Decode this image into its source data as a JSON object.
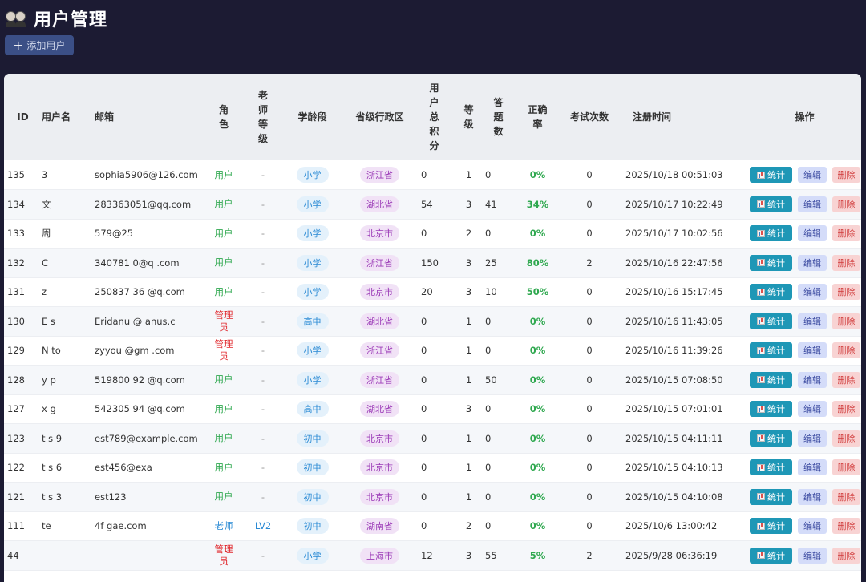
{
  "page": {
    "title": "用户管理",
    "add_button": "添加用户"
  },
  "table": {
    "headers": {
      "id": "ID",
      "username": "用户名",
      "email": "邮箱",
      "role": "角色",
      "teacher_level": "老师等级",
      "stage": "学龄段",
      "province": "省级行政区",
      "total_score": "用户总积分",
      "level": "等级",
      "answered": "答题数",
      "accuracy": "正确率",
      "exams": "考试次数",
      "registered": "注册时间",
      "actions": "操作"
    },
    "action_labels": {
      "stats": "统计",
      "edit": "编辑",
      "delete": "删除"
    },
    "rows": [
      {
        "id": "135",
        "username": "3",
        "email": "sophia5906@126.com",
        "role": "用户",
        "role_type": "user",
        "teacher_level": "-",
        "stage": "小学",
        "province": "浙江省",
        "score": "0",
        "level": "1",
        "answered": "0",
        "accuracy": "0%",
        "exams": "0",
        "registered": "2025/10/18 00:51:03"
      },
      {
        "id": "134",
        "username": "文",
        "email": "283363051@qq.com",
        "role": "用户",
        "role_type": "user",
        "teacher_level": "-",
        "stage": "小学",
        "province": "湖北省",
        "score": "54",
        "level": "3",
        "answered": "41",
        "accuracy": "34%",
        "exams": "0",
        "registered": "2025/10/17 10:22:49"
      },
      {
        "id": "133",
        "username": "周",
        "email": "579@25",
        "role": "用户",
        "role_type": "user",
        "teacher_level": "-",
        "stage": "小学",
        "province": "北京市",
        "score": "0",
        "level": "2",
        "answered": "0",
        "accuracy": "0%",
        "exams": "0",
        "registered": "2025/10/17 10:02:56"
      },
      {
        "id": "132",
        "username": "C",
        "email": "340781 0@q .com",
        "role": "用户",
        "role_type": "user",
        "teacher_level": "-",
        "stage": "小学",
        "province": "浙江省",
        "score": "150",
        "level": "3",
        "answered": "25",
        "accuracy": "80%",
        "exams": "2",
        "registered": "2025/10/16 22:47:56"
      },
      {
        "id": "131",
        "username": "z",
        "email": "250837 36 @q.com",
        "role": "用户",
        "role_type": "user",
        "teacher_level": "-",
        "stage": "小学",
        "province": "北京市",
        "score": "20",
        "level": "3",
        "answered": "10",
        "accuracy": "50%",
        "exams": "0",
        "registered": "2025/10/16 15:17:45"
      },
      {
        "id": "130",
        "username": "E s",
        "email": "Eridanu @ anus.c",
        "role": "管理员",
        "role_type": "admin",
        "teacher_level": "-",
        "stage": "高中",
        "province": "湖北省",
        "score": "0",
        "level": "1",
        "answered": "0",
        "accuracy": "0%",
        "exams": "0",
        "registered": "2025/10/16 11:43:05"
      },
      {
        "id": "129",
        "username": "N to",
        "email": "zyyou @gm .com",
        "role": "管理员",
        "role_type": "admin",
        "teacher_level": "-",
        "stage": "小学",
        "province": "浙江省",
        "score": "0",
        "level": "1",
        "answered": "0",
        "accuracy": "0%",
        "exams": "0",
        "registered": "2025/10/16 11:39:26"
      },
      {
        "id": "128",
        "username": "y p",
        "email": "519800 92 @q.com",
        "role": "用户",
        "role_type": "user",
        "teacher_level": "-",
        "stage": "小学",
        "province": "浙江省",
        "score": "0",
        "level": "1",
        "answered": "50",
        "accuracy": "0%",
        "exams": "0",
        "registered": "2025/10/15 07:08:50"
      },
      {
        "id": "127",
        "username": "x g",
        "email": "542305 94 @q.com",
        "role": "用户",
        "role_type": "user",
        "teacher_level": "-",
        "stage": "高中",
        "province": "湖北省",
        "score": "0",
        "level": "3",
        "answered": "0",
        "accuracy": "0%",
        "exams": "0",
        "registered": "2025/10/15 07:01:01"
      },
      {
        "id": "123",
        "username": "t s 9",
        "email": "est789@example.com",
        "role": "用户",
        "role_type": "user",
        "teacher_level": "-",
        "stage": "初中",
        "province": "北京市",
        "score": "0",
        "level": "1",
        "answered": "0",
        "accuracy": "0%",
        "exams": "0",
        "registered": "2025/10/15 04:11:11"
      },
      {
        "id": "122",
        "username": "t s 6",
        "email": "est456@exa",
        "role": "用户",
        "role_type": "user",
        "teacher_level": "-",
        "stage": "初中",
        "province": "北京市",
        "score": "0",
        "level": "1",
        "answered": "0",
        "accuracy": "0%",
        "exams": "0",
        "registered": "2025/10/15 04:10:13"
      },
      {
        "id": "121",
        "username": "t s 3",
        "email": "est123",
        "role": "用户",
        "role_type": "user",
        "teacher_level": "-",
        "stage": "初中",
        "province": "北京市",
        "score": "0",
        "level": "1",
        "answered": "0",
        "accuracy": "0%",
        "exams": "0",
        "registered": "2025/10/15 04:10:08"
      },
      {
        "id": "111",
        "username": "te",
        "email": "4f gae.com",
        "role": "老师",
        "role_type": "teacher",
        "teacher_level": "LV2",
        "stage": "初中",
        "province": "湖南省",
        "score": "0",
        "level": "2",
        "answered": "0",
        "accuracy": "0%",
        "exams": "0",
        "registered": "2025/10/6 13:00:42"
      },
      {
        "id": "44",
        "username": "",
        "email": "",
        "role": "管理员",
        "role_type": "admin",
        "teacher_level": "-",
        "stage": "小学",
        "province": "上海市",
        "score": "12",
        "level": "3",
        "answered": "55",
        "accuracy": "5%",
        "exams": "2",
        "registered": "2025/9/28 06:36:19"
      }
    ]
  }
}
